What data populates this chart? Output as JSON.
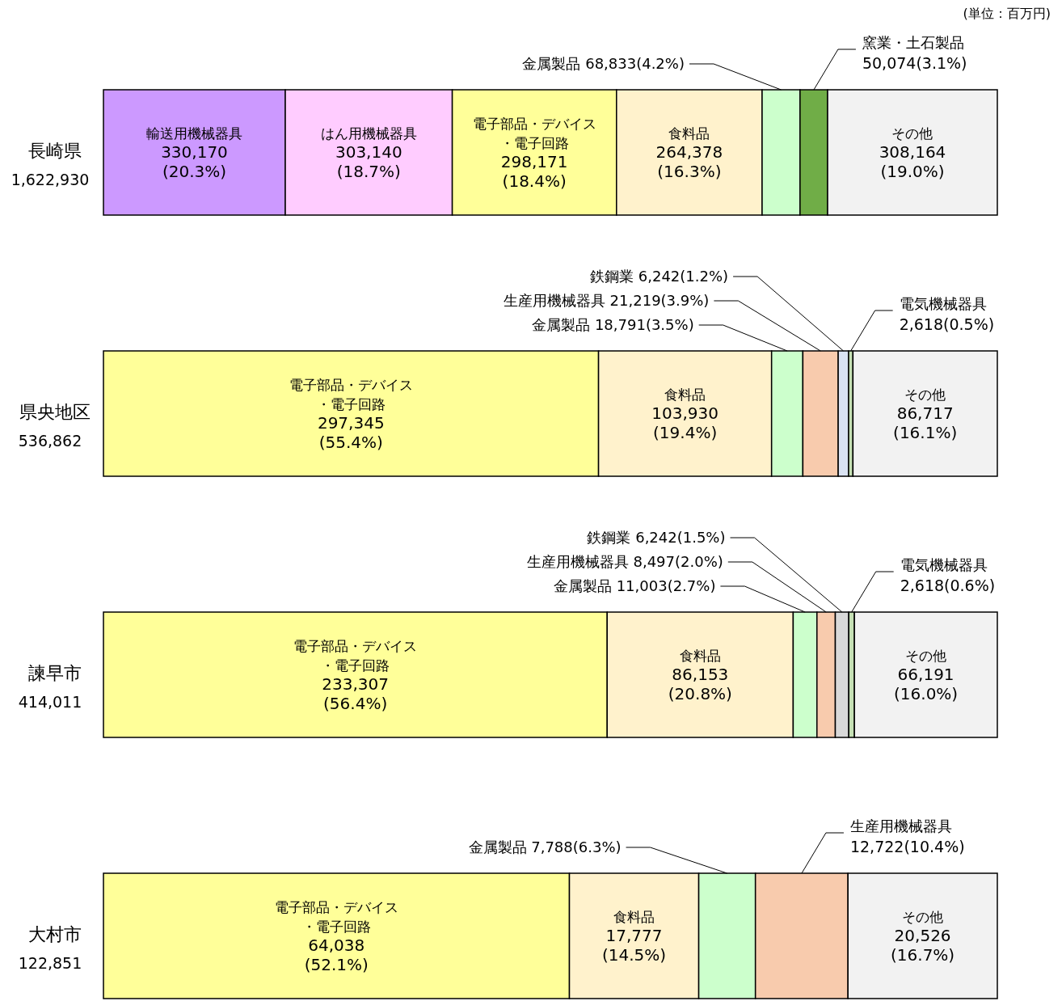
{
  "chart_data": [
    {
      "type": "bar",
      "orientation": "horizontal",
      "stacked": true,
      "categories": [
        "長崎県"
      ],
      "totals": [
        "1,622,930"
      ],
      "xlim": [
        0,
        1622930
      ],
      "annotations": [
        "(単位：百万円)"
      ],
      "series": [
        {
          "name": "輸送用機械器具",
          "color": "#cc99ff",
          "values": [
            330170
          ],
          "value_labels": [
            "330,170(20.3%)"
          ]
        },
        {
          "name": "はん用機械器具",
          "color": "#ffccff",
          "values": [
            303140
          ],
          "value_labels": [
            "303,140(18.7%)"
          ]
        },
        {
          "name": "電子部品・デバイス・電子回路",
          "color": "#ffff99",
          "values": [
            298171
          ],
          "value_labels": [
            "298,171(18.4%)"
          ]
        },
        {
          "name": "食料品",
          "color": "#fff2cc",
          "values": [
            264378
          ],
          "value_labels": [
            "264,378(16.3%)"
          ]
        },
        {
          "name": "金属製品",
          "color": "#ccffcc",
          "values": [
            68833
          ],
          "value_labels": [
            "68,833(4.2%)"
          ]
        },
        {
          "name": "窯業・土石製品",
          "color": "#70ad47",
          "values": [
            50074
          ],
          "value_labels": [
            "50,074(3.1%)"
          ]
        },
        {
          "name": "その他",
          "color": "#f2f2f2",
          "values": [
            308164
          ],
          "value_labels": [
            "308,164(19.0%)"
          ]
        }
      ]
    },
    {
      "type": "bar",
      "orientation": "horizontal",
      "stacked": true,
      "categories": [
        "県央地区"
      ],
      "totals": [
        "536,862"
      ],
      "xlim": [
        0,
        536862
      ],
      "series": [
        {
          "name": "電子部品・デバイス・電子回路",
          "color": "#ffff99",
          "values": [
            297345
          ],
          "value_labels": [
            "297,345(55.4%)"
          ]
        },
        {
          "name": "食料品",
          "color": "#fff2cc",
          "values": [
            103930
          ],
          "value_labels": [
            "103,930(19.4%)"
          ]
        },
        {
          "name": "金属製品",
          "color": "#ccffcc",
          "values": [
            18791
          ],
          "value_labels": [
            "18,791(3.5%)"
          ]
        },
        {
          "name": "生産用機械器具",
          "color": "#f8cbad",
          "values": [
            21219
          ],
          "value_labels": [
            "21,219(3.9%)"
          ]
        },
        {
          "name": "鉄鋼業",
          "color": "#dae3f3",
          "values": [
            6242
          ],
          "value_labels": [
            "6,242(1.2%)"
          ]
        },
        {
          "name": "電気機械器具",
          "color": "#c5e0b4",
          "values": [
            2618
          ],
          "value_labels": [
            "2,618(0.5%)"
          ]
        },
        {
          "name": "その他",
          "color": "#f2f2f2",
          "values": [
            86717
          ],
          "value_labels": [
            "86,717(16.1%)"
          ]
        }
      ]
    },
    {
      "type": "bar",
      "orientation": "horizontal",
      "stacked": true,
      "categories": [
        "諫早市"
      ],
      "totals": [
        "414,011"
      ],
      "xlim": [
        0,
        414011
      ],
      "series": [
        {
          "name": "電子部品・デバイス・電子回路",
          "color": "#ffff99",
          "values": [
            233307
          ],
          "value_labels": [
            "233,307(56.4%)"
          ]
        },
        {
          "name": "食料品",
          "color": "#fff2cc",
          "values": [
            86153
          ],
          "value_labels": [
            "86,153(20.8%)"
          ]
        },
        {
          "name": "金属製品",
          "color": "#ccffcc",
          "values": [
            11003
          ],
          "value_labels": [
            "11,003(2.7%)"
          ]
        },
        {
          "name": "生産用機械器具",
          "color": "#f8cbad",
          "values": [
            8497
          ],
          "value_labels": [
            "8,497(2.0%)"
          ]
        },
        {
          "name": "鉄鋼業",
          "color": "#d9d9d9",
          "values": [
            6242
          ],
          "value_labels": [
            "6,242(1.5%)"
          ]
        },
        {
          "name": "電気機械器具",
          "color": "#c5e0b4",
          "values": [
            2618
          ],
          "value_labels": [
            "2,618(0.6%)"
          ]
        },
        {
          "name": "その他",
          "color": "#f2f2f2",
          "values": [
            66191
          ],
          "value_labels": [
            "66,191(16.0%)"
          ]
        }
      ]
    },
    {
      "type": "bar",
      "orientation": "horizontal",
      "stacked": true,
      "categories": [
        "大村市"
      ],
      "totals": [
        "122,851"
      ],
      "xlim": [
        0,
        122851
      ],
      "series": [
        {
          "name": "電子部品・デバイス・電子回路",
          "color": "#ffff99",
          "values": [
            64038
          ],
          "value_labels": [
            "64,038(52.1%)"
          ]
        },
        {
          "name": "食料品",
          "color": "#fff2cc",
          "values": [
            17777
          ],
          "value_labels": [
            "17,777(14.5%)"
          ]
        },
        {
          "name": "金属製品",
          "color": "#ccffcc",
          "values": [
            7788
          ],
          "value_labels": [
            "7,788(6.3%)"
          ]
        },
        {
          "name": "生産用機械器具",
          "color": "#f8cbad",
          "values": [
            12722
          ],
          "value_labels": [
            "12,722(10.4%)"
          ]
        },
        {
          "name": "その他",
          "color": "#f2f2f2",
          "values": [
            20526
          ],
          "value_labels": [
            "20,526(16.7%)"
          ]
        }
      ]
    }
  ]
}
